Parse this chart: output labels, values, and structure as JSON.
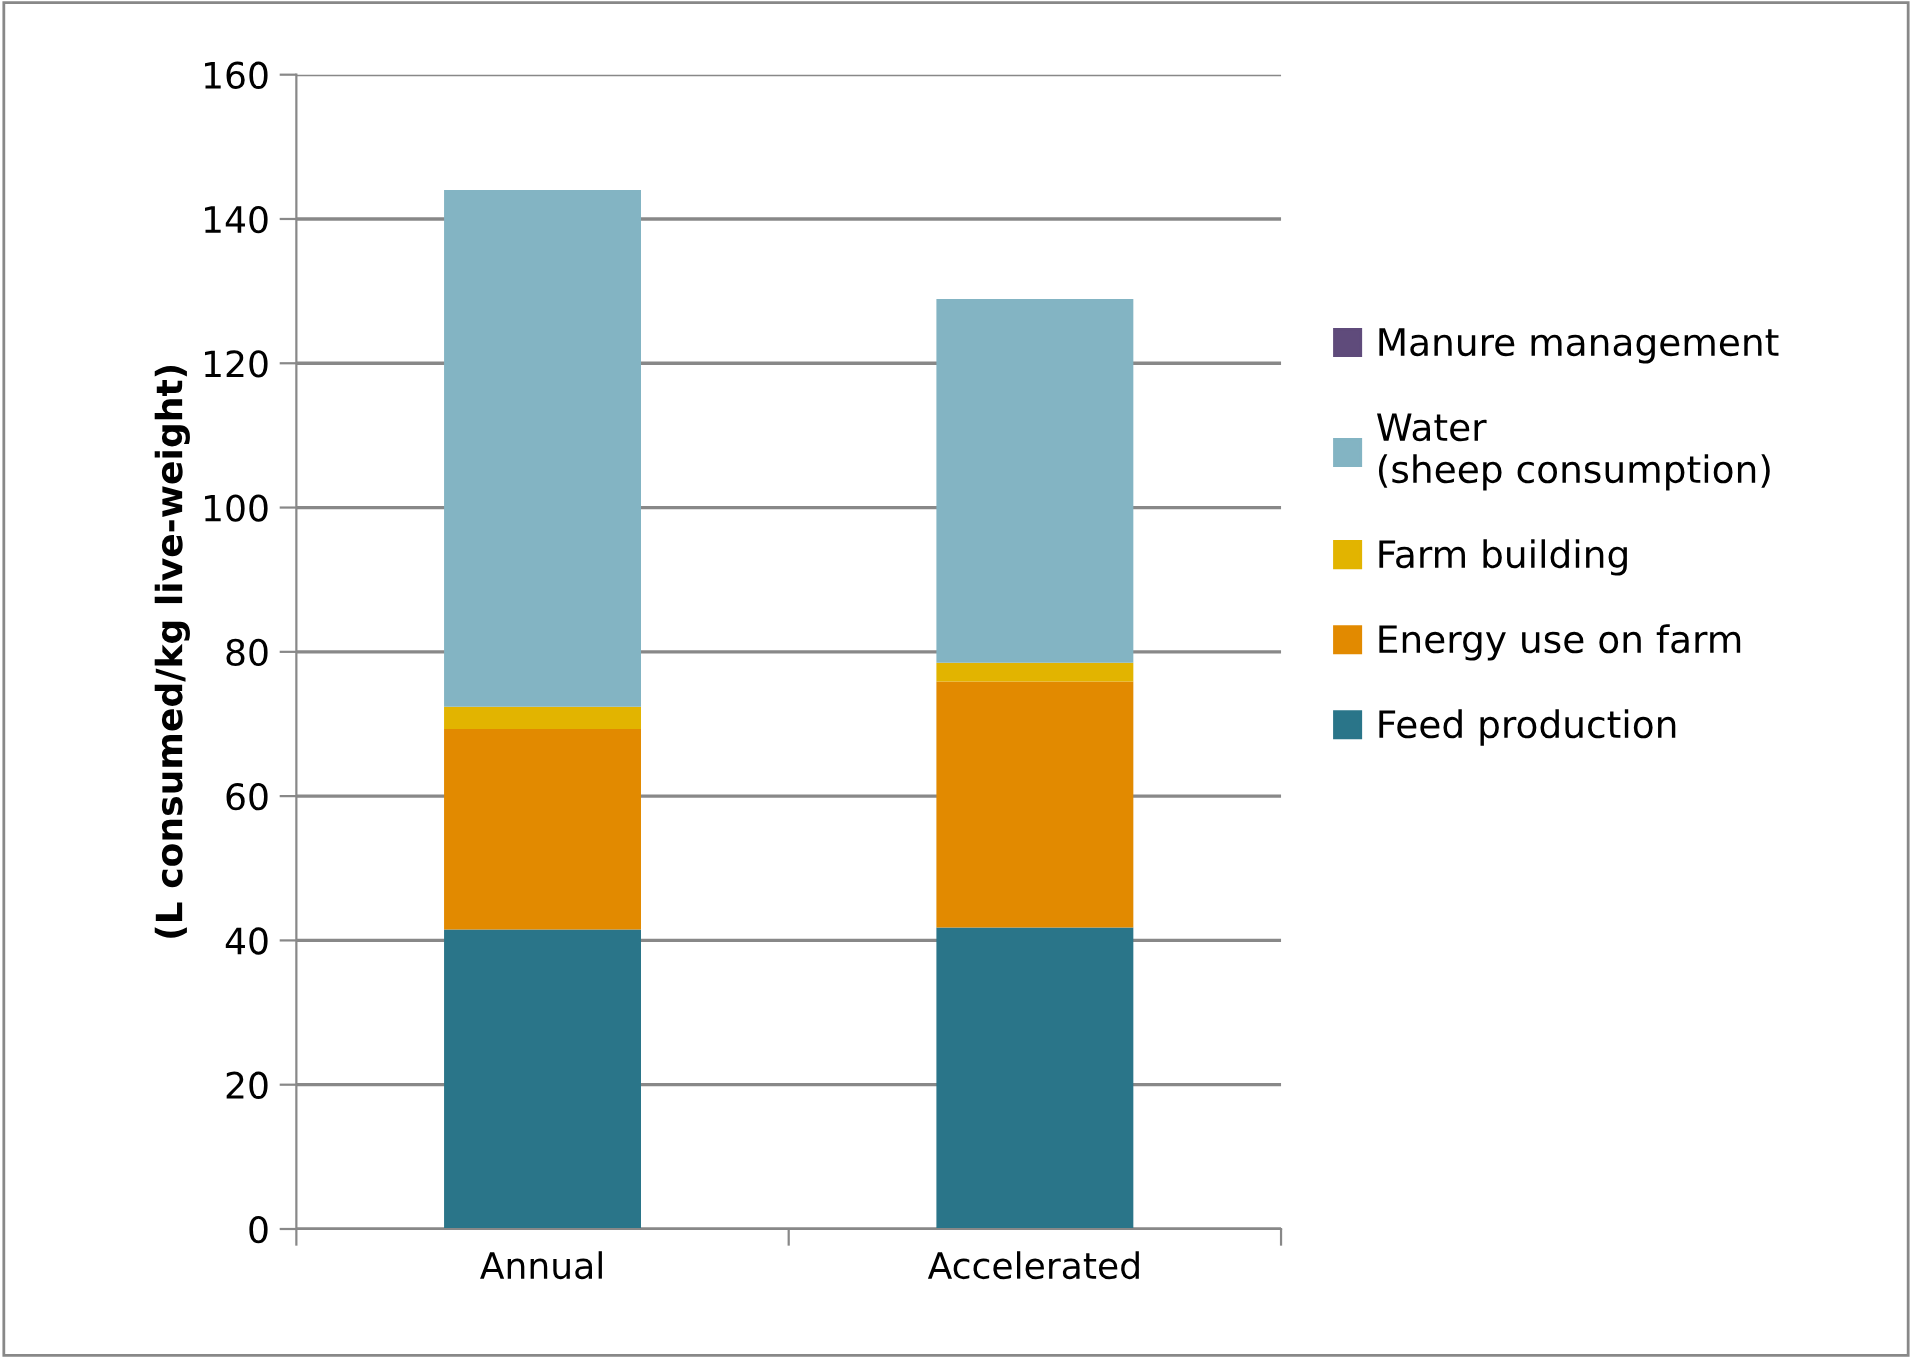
{
  "chart_data": {
    "type": "bar",
    "stacked": true,
    "ylabel": "(L consumed/kg live-weight)",
    "categories": [
      "Annual",
      "Accelerated"
    ],
    "series": [
      {
        "name": "Feed production",
        "color": "#2a7589",
        "values": [
          41.5,
          41.8
        ]
      },
      {
        "name": "Energy use on farm",
        "color": "#e28a00",
        "values": [
          27.8,
          34.1
        ]
      },
      {
        "name": "Farm building",
        "color": "#e2b400",
        "values": [
          3.1,
          2.6
        ]
      },
      {
        "name": "Water (sheep consumption)",
        "color": "#83b4c3",
        "values": [
          71.6,
          50.4
        ]
      },
      {
        "name": "Manure management",
        "color": "#5f4b7b",
        "values": [
          0,
          0
        ]
      }
    ],
    "ylim": [
      0,
      160
    ],
    "yticks": [
      0,
      20,
      40,
      60,
      80,
      100,
      120,
      140,
      160
    ],
    "grid": "y",
    "legend": "right"
  }
}
